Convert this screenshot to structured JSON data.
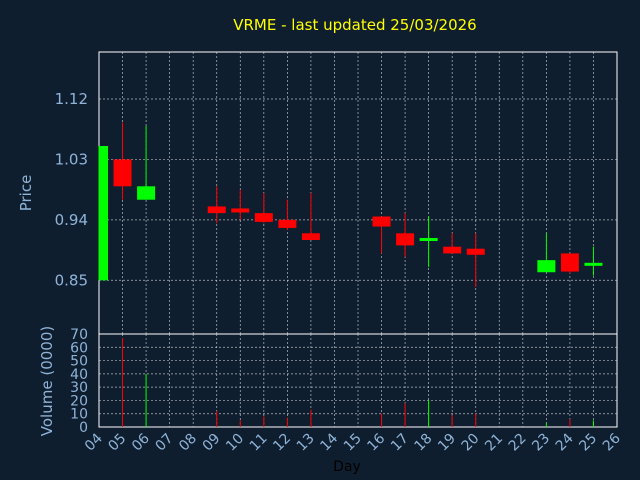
{
  "chart_data": {
    "type": "candlestick",
    "title": "VRME - last updated 25/03/2026",
    "xlabel": "Day",
    "ylabel": "Price",
    "volume_label": "Volume (0000)",
    "grid": true,
    "colors": {
      "up": "#00ff00",
      "down": "#ff0000",
      "title": "#ffff00",
      "axis_text": "#8fb4d8",
      "background": "#0f1e2f",
      "grid": "#e0e0e0"
    },
    "price_ylim": [
      0.77,
      1.19
    ],
    "price_ticks": [
      "0.85",
      "0.94",
      "1.03",
      "1.12"
    ],
    "volume_ylim": [
      0,
      70
    ],
    "volume_ticks": [
      "0",
      "10",
      "20",
      "30",
      "40",
      "50",
      "60",
      "70"
    ],
    "x_ticks": [
      "04",
      "05",
      "06",
      "07",
      "08",
      "09",
      "10",
      "11",
      "12",
      "13",
      "14",
      "15",
      "16",
      "17",
      "18",
      "19",
      "20",
      "21",
      "22",
      "23",
      "24",
      "25",
      "26"
    ],
    "candles": [
      {
        "day": "04",
        "open": 0.85,
        "high": 1.05,
        "low": 0.85,
        "close": 1.05,
        "volume": 0
      },
      {
        "day": "05",
        "open": 1.03,
        "high": 1.085,
        "low": 0.97,
        "close": 0.99,
        "volume": 67
      },
      {
        "day": "06",
        "open": 0.97,
        "high": 1.08,
        "low": 0.97,
        "close": 0.99,
        "volume": 40
      },
      {
        "day": "09",
        "open": 0.96,
        "high": 0.99,
        "low": 0.935,
        "close": 0.95,
        "volume": 12
      },
      {
        "day": "10",
        "open": 0.957,
        "high": 0.985,
        "low": 0.94,
        "close": 0.951,
        "volume": 5
      },
      {
        "day": "11",
        "open": 0.95,
        "high": 0.98,
        "low": 0.935,
        "close": 0.937,
        "volume": 8
      },
      {
        "day": "12",
        "open": 0.94,
        "high": 0.97,
        "low": 0.925,
        "close": 0.928,
        "volume": 7
      },
      {
        "day": "13",
        "open": 0.92,
        "high": 0.98,
        "low": 0.91,
        "close": 0.91,
        "volume": 13
      },
      {
        "day": "16",
        "open": 0.945,
        "high": 0.945,
        "low": 0.89,
        "close": 0.93,
        "volume": 10
      },
      {
        "day": "17",
        "open": 0.92,
        "high": 0.95,
        "low": 0.885,
        "close": 0.902,
        "volume": 18
      },
      {
        "day": "18",
        "open": 0.91,
        "high": 0.945,
        "low": 0.87,
        "close": 0.913,
        "volume": 20
      },
      {
        "day": "19",
        "open": 0.9,
        "high": 0.92,
        "low": 0.89,
        "close": 0.89,
        "volume": 9
      },
      {
        "day": "20",
        "open": 0.897,
        "high": 0.92,
        "low": 0.84,
        "close": 0.888,
        "volume": 10
      },
      {
        "day": "23",
        "open": 0.862,
        "high": 0.92,
        "low": 0.862,
        "close": 0.88,
        "volume": 3
      },
      {
        "day": "24",
        "open": 0.89,
        "high": 0.89,
        "low": 0.86,
        "close": 0.863,
        "volume": 6
      },
      {
        "day": "25",
        "open": 0.873,
        "high": 0.9,
        "low": 0.857,
        "close": 0.876,
        "volume": 5
      }
    ]
  }
}
